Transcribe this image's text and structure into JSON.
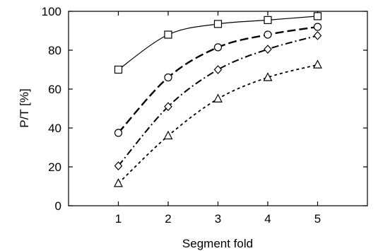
{
  "chart_data": {
    "type": "line",
    "title": "",
    "xlabel": "Segment fold",
    "ylabel": "P/T [%]",
    "xlim": [
      0,
      6
    ],
    "ylim": [
      0,
      100
    ],
    "xticks": [
      1,
      2,
      3,
      4,
      5
    ],
    "yticks": [
      0,
      20,
      40,
      60,
      80,
      100
    ],
    "grid": false,
    "x": [
      1,
      2,
      3,
      4,
      5
    ],
    "series": [
      {
        "marker": "square",
        "line": "solid",
        "values": [
          70,
          88,
          93.5,
          95.5,
          97.5
        ]
      },
      {
        "marker": "circle",
        "line": "dashed",
        "values": [
          37.5,
          66,
          81.5,
          88,
          92
        ]
      },
      {
        "marker": "diamond",
        "line": "dash-dot",
        "values": [
          20.5,
          51,
          70,
          80.5,
          87.5
        ]
      },
      {
        "marker": "triangle",
        "line": "dotted",
        "values": [
          11.5,
          36,
          55,
          66,
          72.5
        ]
      }
    ],
    "colors": {
      "line": "#000000",
      "marker_fill": "#ffffff"
    }
  }
}
